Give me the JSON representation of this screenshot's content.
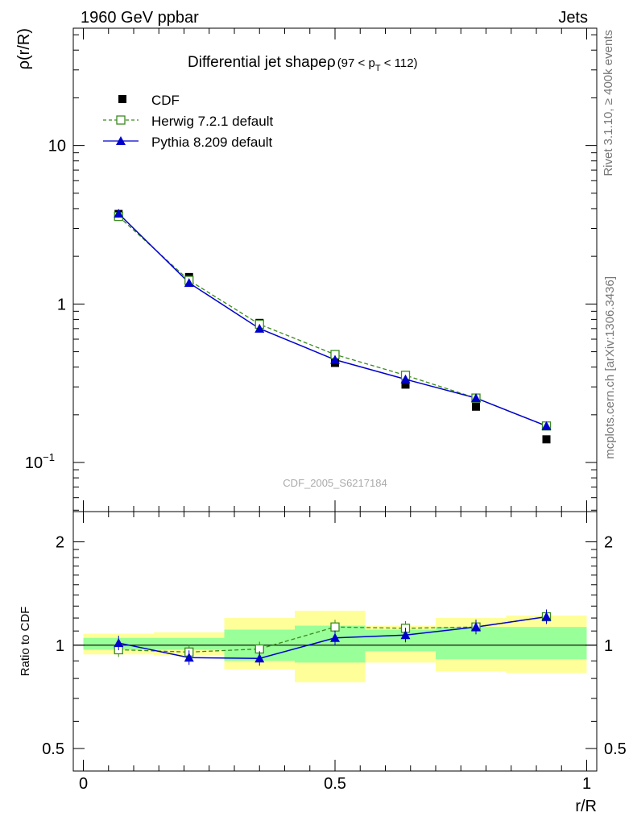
{
  "header": {
    "left": "1960 GeV ppbar",
    "right": "Jets"
  },
  "side_labels": {
    "rivet": "Rivet 3.1.10, ≥ 400k events",
    "mcplots": "mcplots.cern.ch [arXiv:1306.3436]"
  },
  "chart_data": [
    {
      "type": "line",
      "panel": "main",
      "title": "Differential jet shapeρ",
      "title_cut": "(97 < p",
      "title_cut_sub": "T",
      "title_cut_end": " < 112)",
      "ylabel": "ρ(r/R)",
      "xlabel": "",
      "yscale": "log",
      "xlim": [
        -0.02,
        1.02
      ],
      "ylim": [
        0.049,
        55
      ],
      "yticks": [
        {
          "value": 10,
          "label": "10"
        },
        {
          "value": 1,
          "label": "1"
        },
        {
          "value": 0.1,
          "label": "10",
          "sup": "−1"
        }
      ],
      "watermark": "CDF_2005_S6217184",
      "legend": {
        "placement": "top-left"
      },
      "x": [
        0.07,
        0.21,
        0.35,
        0.5,
        0.64,
        0.78,
        0.92
      ],
      "series": [
        {
          "name": "CDF",
          "style": "black-square-markers",
          "color": "#000000",
          "y": [
            3.7,
            1.48,
            0.76,
            0.425,
            0.31,
            0.225,
            0.14
          ]
        },
        {
          "name": "Herwig 7.2.1 default",
          "style": "green-dashed-open-square",
          "color": "#3a8a1e",
          "y": [
            3.57,
            1.41,
            0.745,
            0.48,
            0.355,
            0.255,
            0.17
          ]
        },
        {
          "name": "Pythia 8.209 default",
          "style": "blue-solid-triangle",
          "color": "#0000cc",
          "y": [
            3.72,
            1.36,
            0.7,
            0.445,
            0.335,
            0.255,
            0.17
          ]
        }
      ]
    },
    {
      "type": "line",
      "panel": "ratio",
      "ylabel": "Ratio to CDF",
      "xlabel": "r/R",
      "yscale": "log",
      "xlim": [
        -0.02,
        1.02
      ],
      "ylim": [
        0.43,
        2.45
      ],
      "yticks": [
        {
          "value": 2,
          "label": "2"
        },
        {
          "value": 1,
          "label": "1"
        },
        {
          "value": 0.5,
          "label": "0.5"
        }
      ],
      "xticks": [
        {
          "value": 0,
          "label": "0"
        },
        {
          "value": 0.5,
          "label": "0.5"
        },
        {
          "value": 1,
          "label": "1"
        }
      ],
      "bands": {
        "bin_edges": [
          0,
          0.14,
          0.28,
          0.42,
          0.56,
          0.7,
          0.84,
          1.0
        ],
        "yellow_color": "#ffff99",
        "green_color": "#99ff99",
        "yellow": [
          [
            0.94,
            1.08
          ],
          [
            0.935,
            1.09
          ],
          [
            0.85,
            1.2
          ],
          [
            0.78,
            1.26
          ],
          [
            0.89,
            1.14
          ],
          [
            0.84,
            1.2
          ],
          [
            0.83,
            1.22
          ]
        ],
        "green": [
          [
            0.97,
            1.05
          ],
          [
            0.97,
            1.05
          ],
          [
            0.9,
            1.11
          ],
          [
            0.89,
            1.14
          ],
          [
            0.96,
            1.11
          ],
          [
            0.91,
            1.13
          ],
          [
            0.91,
            1.13
          ]
        ]
      },
      "x": [
        0.07,
        0.21,
        0.35,
        0.5,
        0.64,
        0.78,
        0.92
      ],
      "series": [
        {
          "name": "Herwig 7.2.1 default",
          "color": "#3a8a1e",
          "y": [
            0.97,
            0.955,
            0.975,
            1.13,
            1.12,
            1.13,
            1.21
          ]
        },
        {
          "name": "Pythia 8.209 default",
          "color": "#0000cc",
          "y": [
            1.015,
            0.92,
            0.915,
            1.05,
            1.07,
            1.13,
            1.21
          ]
        }
      ]
    }
  ]
}
